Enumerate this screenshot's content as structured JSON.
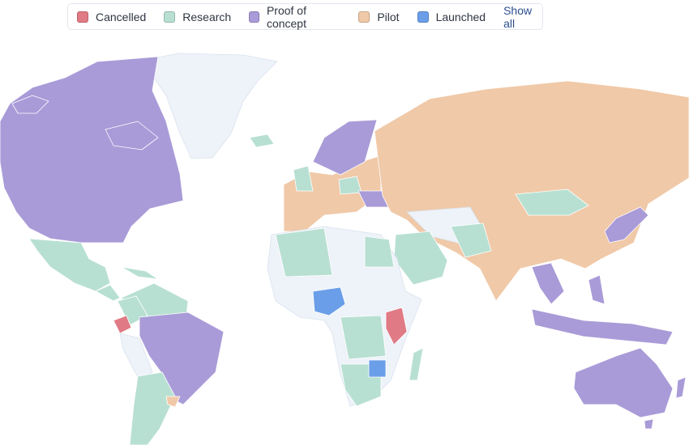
{
  "legend": {
    "items": [
      {
        "label": "Cancelled",
        "color": "#e07a85"
      },
      {
        "label": "Research",
        "color": "#b8e0d2"
      },
      {
        "label": "Proof of concept",
        "color": "#a99bd8"
      },
      {
        "label": "Pilot",
        "color": "#f0c9a8"
      },
      {
        "label": "Launched",
        "color": "#6a9ee8"
      }
    ],
    "show_all": "Show all"
  }
}
